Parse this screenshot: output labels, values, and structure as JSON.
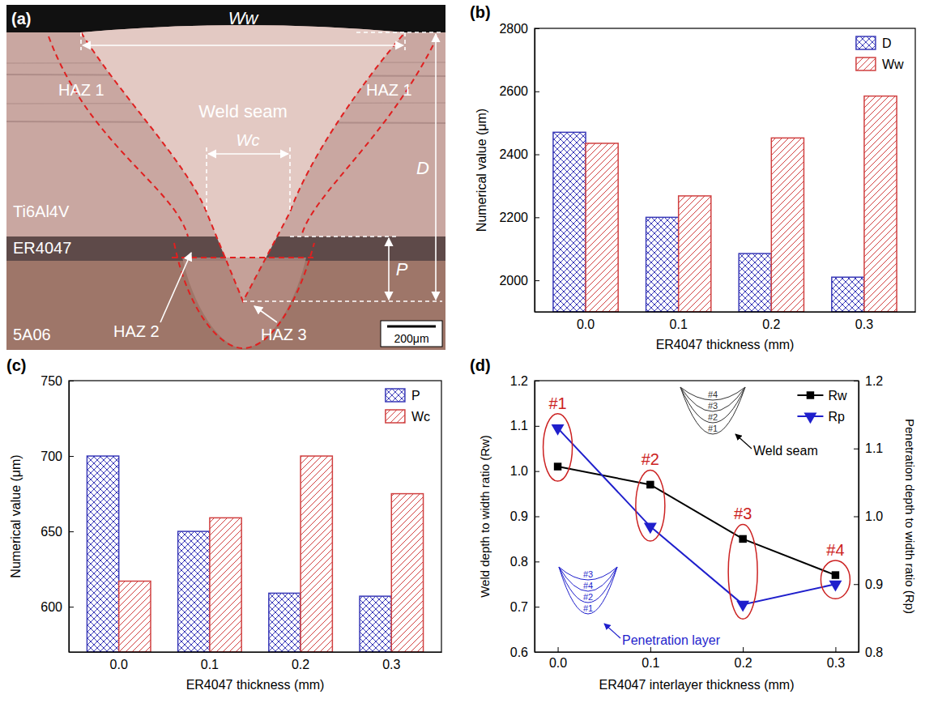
{
  "micrograph": {
    "panel_label": "(a)",
    "labels": {
      "weld_width": "Ww",
      "depth": "D",
      "core_width": "Wc",
      "penetration": "P",
      "haz1": "HAZ 1",
      "weld_seam": "Weld seam",
      "titanium": "Ti6Al4V",
      "filler": "ER4047",
      "aluminium": "5A06",
      "haz2": "HAZ 2",
      "haz3": "HAZ 3",
      "scale_bar": "200μm"
    }
  },
  "chart_data": [
    {
      "type": "bar",
      "panel_label": "(b)",
      "x_label": "ER4047 thickness (mm)",
      "y_label": "Numerical value (μm)",
      "categories": [
        "0.0",
        "0.1",
        "0.2",
        "0.3"
      ],
      "series": [
        {
          "name": "D",
          "color": "#3a3ab8",
          "values": [
            2470,
            2200,
            2085,
            2010
          ]
        },
        {
          "name": "Ww",
          "color": "#d04040",
          "values": [
            2435,
            2268,
            2452,
            2585
          ]
        }
      ],
      "ylim": [
        1900,
        2800
      ],
      "yticks": [
        2000,
        2200,
        2400,
        2600,
        2800
      ],
      "legend": "top-right"
    },
    {
      "type": "bar",
      "panel_label": "(c)",
      "x_label": "ER4047 thickness (mm)",
      "y_label": "Numerical value (μm)",
      "categories": [
        "0.0",
        "0.1",
        "0.2",
        "0.3"
      ],
      "series": [
        {
          "name": "P",
          "color": "#3a3ab8",
          "values": [
            700,
            650,
            609,
            607
          ]
        },
        {
          "name": "Wc",
          "color": "#d04040",
          "values": [
            617,
            659,
            700,
            675
          ]
        }
      ],
      "ylim": [
        570,
        750
      ],
      "yticks": [
        600,
        650,
        700,
        750
      ],
      "legend": "top-right"
    },
    {
      "type": "line",
      "panel_label": "(d)",
      "x_label": "ER4047 interlayer thickness (mm)",
      "y_label": "Weld depth to width ratio (Rw)",
      "y2_label": "Penetration depth to width ratio (Rp)",
      "x": [
        0,
        0.1,
        0.2,
        0.3
      ],
      "xlim": [
        -0.025,
        0.325
      ],
      "xticks": [
        {
          "value": 0,
          "label": "0.0"
        },
        0.1,
        0.2,
        0.3
      ],
      "ylim": [
        0.6,
        1.2
      ],
      "yticks": [
        0.6,
        0.7,
        0.8,
        0.9,
        {
          "value": 1,
          "label": "1.0"
        },
        1.1,
        1.2
      ],
      "y2lim": [
        0.8,
        1.2
      ],
      "y2ticks": [
        0.8,
        0.9,
        {
          "value": 1,
          "label": "1.0"
        },
        1.1,
        1.2
      ],
      "series": [
        {
          "name": "Rw",
          "color": "#000000",
          "marker": "square",
          "values": [
            1.01,
            0.97,
            0.85,
            0.77
          ]
        },
        {
          "name": "Rp",
          "color": "#1f1fcc",
          "marker": "triangle-down",
          "axis": "y2",
          "values": [
            1.13,
            0.985,
            0.87,
            0.9
          ]
        }
      ],
      "legend": "top-right",
      "annotations": {
        "groups": [
          "#1",
          "#2",
          "#3",
          "#4"
        ],
        "insets": [
          {
            "text": "Weld seam",
            "curves": [
              "#4",
              "#3",
              "#2",
              "#1"
            ]
          },
          {
            "text": "Penetration layer",
            "curves": [
              "#3",
              "#4",
              "#2",
              "#1"
            ]
          }
        ]
      }
    }
  ]
}
